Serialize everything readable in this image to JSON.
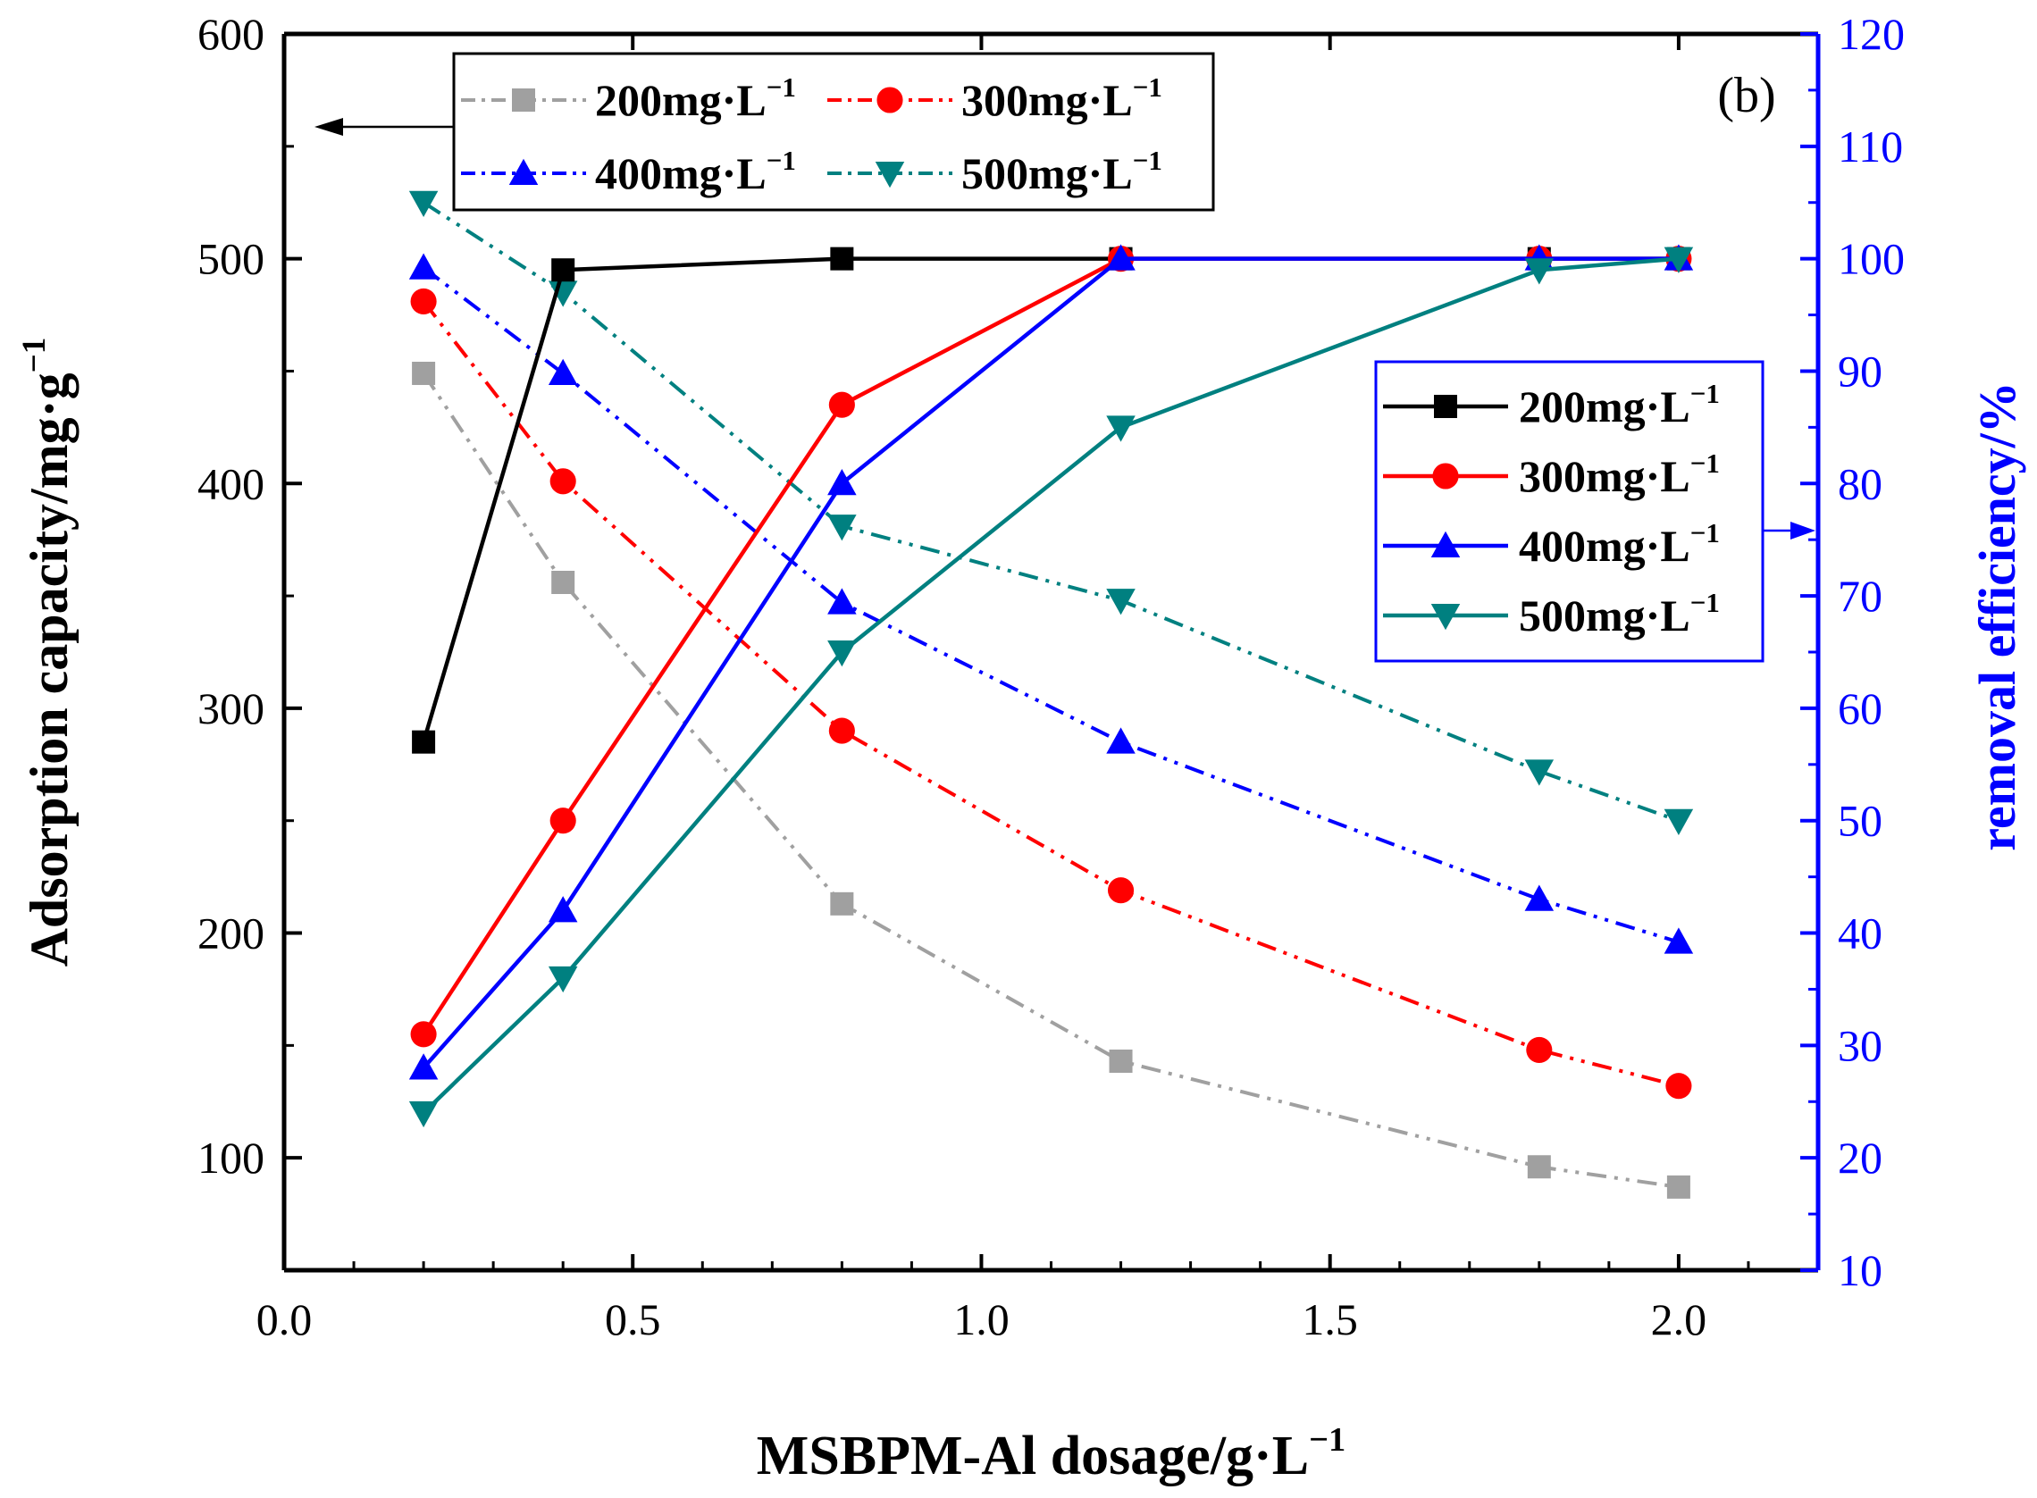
{
  "chart_data": {
    "type": "line",
    "panel_label": "(b)",
    "xlabel": "MSBPM-Al dosage/g·L",
    "xlabel_sup": "−1",
    "ylabel_left": "Adsorption capacity/mg·g",
    "ylabel_left_sup": "−1",
    "ylabel_right": "removal efficiency/%",
    "xlim": [
      0.0,
      2.2
    ],
    "ylim_left": [
      50,
      600
    ],
    "ylim_right": [
      10,
      120
    ],
    "x_ticks": [
      "0.0",
      "0.5",
      "1.0",
      "1.5",
      "2.0"
    ],
    "y_left_ticks": [
      "100",
      "200",
      "300",
      "400",
      "500",
      "600"
    ],
    "y_right_ticks": [
      "10",
      "20",
      "30",
      "40",
      "50",
      "60",
      "70",
      "80",
      "90",
      "100",
      "110",
      "120"
    ],
    "x": [
      0.2,
      0.4,
      0.8,
      1.2,
      1.8,
      2.0
    ],
    "colors": {
      "s200": "#000000",
      "s300": "#ff0000",
      "s400": "#0000ff",
      "s500": "#008080",
      "s200_capacity": "#a0a0a0",
      "right_axis": "#0000ff"
    },
    "capacity_series": [
      {
        "name": "200mg·L",
        "sup": "−1",
        "axis": "left",
        "marker": "square",
        "color_key": "s200_capacity",
        "values": [
          449,
          356,
          213,
          143,
          96,
          87
        ]
      },
      {
        "name": "300mg·L",
        "sup": "−1",
        "axis": "left",
        "marker": "circle",
        "color_key": "s300",
        "values": [
          481,
          401,
          290,
          219,
          148,
          132
        ]
      },
      {
        "name": "400mg·L",
        "sup": "−1",
        "axis": "left",
        "marker": "triangle-up",
        "color_key": "s400",
        "values": [
          496,
          449,
          347,
          285,
          215,
          196
        ]
      },
      {
        "name": "500mg·L",
        "sup": "−1",
        "axis": "left",
        "marker": "triangle-down",
        "color_key": "s500",
        "values": [
          525,
          485,
          381,
          348,
          272,
          250
        ]
      }
    ],
    "removal_series": [
      {
        "name": "200mg·L",
        "sup": "−1",
        "axis": "right",
        "marker": "square",
        "color_key": "s200",
        "values": [
          57,
          99,
          100,
          100,
          100,
          100
        ]
      },
      {
        "name": "300mg·L",
        "sup": "−1",
        "axis": "right",
        "marker": "circle",
        "color_key": "s300",
        "values": [
          31,
          50,
          87,
          100,
          100,
          100
        ]
      },
      {
        "name": "400mg·L",
        "sup": "−1",
        "axis": "right",
        "marker": "triangle-up",
        "color_key": "s400",
        "values": [
          28,
          42,
          80,
          100,
          100,
          100
        ]
      },
      {
        "name": "500mg·L",
        "sup": "−1",
        "axis": "right",
        "marker": "triangle-down",
        "color_key": "s500",
        "values": [
          24,
          36,
          65,
          85,
          99,
          100
        ]
      }
    ],
    "legend_capacity_placement": "top-left",
    "legend_removal_placement": "right",
    "grid": false
  }
}
